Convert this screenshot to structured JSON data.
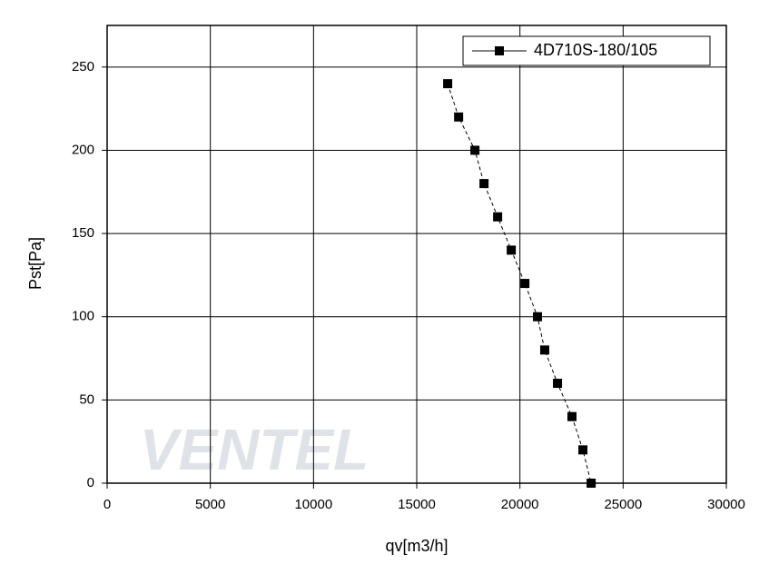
{
  "chart_data": {
    "type": "line",
    "x_label": "qv[m3/h]",
    "y_label": "Pst[Pa]",
    "watermark": "VENTEL",
    "legend": "upper right",
    "grid": true,
    "xlim": [
      0,
      30000
    ],
    "xticks": [
      0,
      5000,
      10000,
      15000,
      20000,
      25000,
      30000
    ],
    "ylim": [
      0,
      275
    ],
    "yticks": [
      0,
      50,
      100,
      150,
      200,
      250
    ],
    "series": [
      {
        "name": "4D710S-180/105",
        "color": "#000000",
        "x": [
          16500,
          17030,
          17820,
          18260,
          18920,
          19580,
          20240,
          20850,
          21200,
          21820,
          22520,
          23050,
          23450
        ],
        "values": [
          240,
          220,
          200,
          180,
          160,
          140,
          120,
          100,
          80,
          60,
          40,
          20,
          0
        ]
      }
    ]
  }
}
